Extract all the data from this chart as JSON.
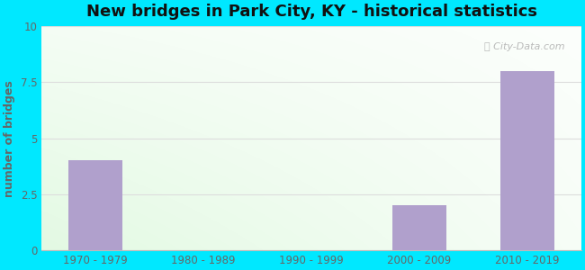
{
  "title": "New bridges in Park City, KY - historical statistics",
  "categories": [
    "1970 - 1979",
    "1980 - 1989",
    "1990 - 1999",
    "2000 - 2009",
    "2010 - 2019"
  ],
  "values": [
    4,
    0,
    0,
    2,
    8
  ],
  "bar_color": "#b0a0cc",
  "ylabel": "number of bridges",
  "ylim": [
    0,
    10
  ],
  "yticks": [
    0,
    2.5,
    5,
    7.5,
    10
  ],
  "ytick_labels": [
    "0",
    "2.5",
    "5",
    "7.5",
    "10"
  ],
  "background_outer": "#00e8ff",
  "title_fontsize": 13,
  "axis_label_fontsize": 9,
  "tick_fontsize": 8.5,
  "watermark": "City-Data.com"
}
